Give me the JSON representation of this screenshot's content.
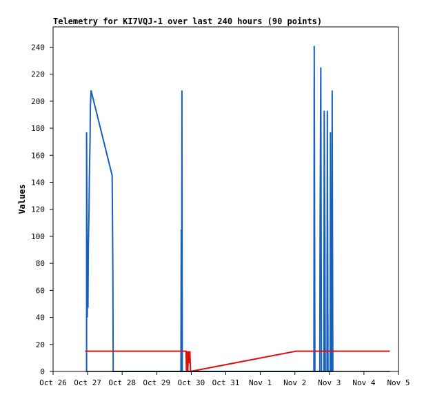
{
  "chart_data": {
    "type": "line",
    "title": "Telemetry for KI7VQJ-1 over last 240 hours (90 points)",
    "xlabel": "",
    "ylabel": "Values",
    "x_ticks": [
      "Oct 26",
      "Oct 27",
      "Oct 28",
      "Oct 29",
      "Oct 30",
      "Oct 31",
      "Nov 1",
      "Nov 2",
      "Nov 3",
      "Nov 4",
      "Nov 5"
    ],
    "y_ticks": [
      0,
      20,
      40,
      60,
      80,
      100,
      120,
      140,
      160,
      180,
      200,
      220,
      240
    ],
    "xlim": [
      0,
      10
    ],
    "ylim": [
      0,
      255
    ],
    "grid": false,
    "colors": {
      "blue": "#1560bd",
      "red": "#e01010",
      "black": "#000000",
      "frame": "#000000"
    },
    "series": [
      {
        "color": "#1560bd",
        "points": [
          [
            0.97,
            0
          ],
          [
            0.97,
            177
          ],
          [
            0.99,
            40
          ],
          [
            1.0,
            66
          ],
          [
            1.01,
            47
          ],
          [
            1.02,
            92
          ],
          [
            1.04,
            118
          ],
          [
            1.05,
            143
          ],
          [
            1.07,
            170
          ],
          [
            1.08,
            196
          ],
          [
            1.1,
            208
          ],
          [
            1.71,
            145
          ],
          [
            1.73,
            73
          ],
          [
            1.74,
            0
          ],
          [
            3.7,
            0
          ],
          [
            3.71,
            105
          ],
          [
            3.72,
            0
          ],
          [
            3.73,
            208
          ],
          [
            3.74,
            0
          ],
          [
            7.55,
            0
          ],
          [
            7.56,
            241
          ],
          [
            7.57,
            121
          ],
          [
            7.58,
            0
          ],
          [
            7.72,
            0
          ],
          [
            7.73,
            113
          ],
          [
            7.75,
            225
          ],
          [
            7.77,
            0
          ],
          [
            7.84,
            0
          ],
          [
            7.85,
            193
          ],
          [
            7.87,
            97
          ],
          [
            7.88,
            0
          ],
          [
            7.93,
            0
          ],
          [
            7.94,
            193
          ],
          [
            7.96,
            0
          ],
          [
            8.02,
            0
          ],
          [
            8.03,
            177
          ],
          [
            8.05,
            0
          ],
          [
            8.07,
            0
          ],
          [
            8.08,
            208
          ],
          [
            8.1,
            0
          ]
        ]
      },
      {
        "color": "#e01010",
        "points": [
          [
            0.93,
            15
          ],
          [
            3.85,
            15
          ],
          [
            3.86,
            0
          ],
          [
            3.88,
            15
          ],
          [
            3.9,
            0
          ],
          [
            3.92,
            15
          ],
          [
            3.94,
            6
          ],
          [
            3.96,
            15
          ],
          [
            3.98,
            0
          ],
          [
            7.03,
            15
          ],
          [
            9.75,
            15
          ]
        ]
      },
      {
        "color": "#000000",
        "points": [
          [
            0.95,
            0
          ],
          [
            9.75,
            0
          ]
        ]
      }
    ]
  }
}
